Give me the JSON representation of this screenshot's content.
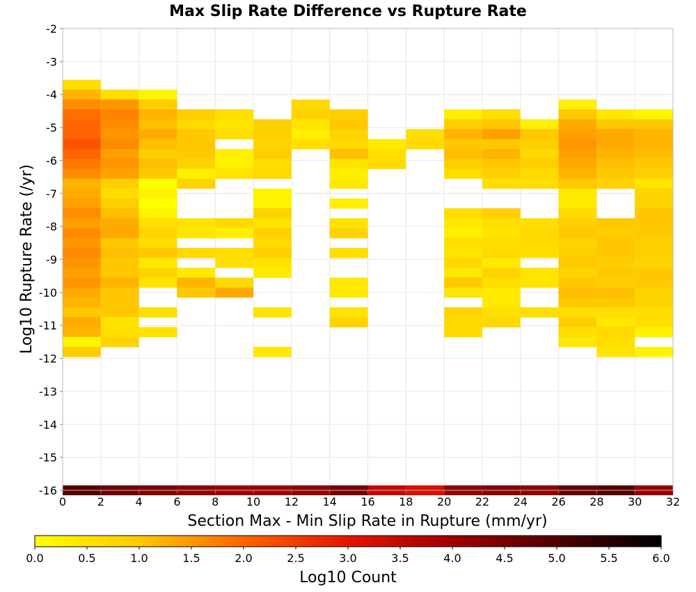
{
  "chart_data": {
    "type": "heatmap",
    "title": "Max Slip Rate Difference vs Rupture Rate",
    "xlabel": "Section Max - Min Slip Rate in Rupture (mm/yr)",
    "ylabel": "Log10 Rupture Rate (/yr)",
    "colorbar_label": "Log10 Count",
    "xlim": [
      0,
      32
    ],
    "ylim": [
      -16,
      -2
    ],
    "x_ticks": [
      "0",
      "2",
      "4",
      "6",
      "8",
      "10",
      "12",
      "14",
      "16",
      "18",
      "20",
      "22",
      "24",
      "26",
      "28",
      "30",
      "32"
    ],
    "y_ticks": [
      "-2",
      "-3",
      "-4",
      "-5",
      "-6",
      "-7",
      "-8",
      "-9",
      "-10",
      "-11",
      "-12",
      "-13",
      "-14",
      "-15",
      "-16"
    ],
    "colorbar_ticks": [
      "0.0",
      "0.5",
      "1.0",
      "1.5",
      "2.0",
      "2.5",
      "3.0",
      "3.5",
      "4.0",
      "4.5",
      "5.0",
      "5.5",
      "6.0"
    ],
    "colorscale": {
      "range": [
        0,
        6
      ],
      "stops": [
        {
          "v": 0.0,
          "color": "#ffff00"
        },
        {
          "v": 1.0,
          "color": "#ffc800"
        },
        {
          "v": 2.0,
          "color": "#ff6400"
        },
        {
          "v": 3.0,
          "color": "#e61400"
        },
        {
          "v": 4.0,
          "color": "#a00000"
        },
        {
          "v": 5.0,
          "color": "#500000"
        },
        {
          "v": 6.0,
          "color": "#000000"
        }
      ]
    },
    "x_bin_width": 2,
    "y_bin_height": 0.3,
    "bottom_row": {
      "y": -16,
      "values": [
        4.9,
        4.6,
        4.4,
        4.2,
        4.0,
        4.0,
        4.2,
        4.5,
        3.5,
        3.2,
        4.2,
        4.3,
        4.2,
        4.7,
        4.9,
        4.1
      ]
    },
    "columns": [
      {
        "x": 0,
        "cells": [
          [
            -3.7,
            0.6
          ],
          [
            -4.0,
            1.2
          ],
          [
            -4.3,
            1.6
          ],
          [
            -4.6,
            1.9
          ],
          [
            -4.9,
            2.0
          ],
          [
            -5.2,
            2.0
          ],
          [
            -5.5,
            2.2
          ],
          [
            -5.8,
            2.0
          ],
          [
            -6.1,
            1.8
          ],
          [
            -6.4,
            1.6
          ],
          [
            -6.7,
            1.2
          ],
          [
            -7.0,
            1.3
          ],
          [
            -7.3,
            1.4
          ],
          [
            -7.6,
            1.6
          ],
          [
            -7.9,
            1.4
          ],
          [
            -8.2,
            1.6
          ],
          [
            -8.5,
            1.5
          ],
          [
            -8.8,
            1.6
          ],
          [
            -9.1,
            1.5
          ],
          [
            -9.4,
            1.4
          ],
          [
            -9.7,
            1.5
          ],
          [
            -10.0,
            1.3
          ],
          [
            -10.3,
            1.2
          ],
          [
            -10.6,
            1.0
          ],
          [
            -10.9,
            1.3
          ],
          [
            -11.2,
            1.2
          ],
          [
            -11.5,
            0.2
          ],
          [
            -11.8,
            0.9
          ]
        ]
      },
      {
        "x": 2,
        "cells": [
          [
            -4.0,
            0.6
          ],
          [
            -4.3,
            1.5
          ],
          [
            -4.6,
            1.7
          ],
          [
            -4.9,
            1.6
          ],
          [
            -5.2,
            1.5
          ],
          [
            -5.5,
            1.6
          ],
          [
            -5.8,
            1.4
          ],
          [
            -6.1,
            1.5
          ],
          [
            -6.4,
            1.4
          ],
          [
            -6.7,
            0.9
          ],
          [
            -7.0,
            0.6
          ],
          [
            -7.3,
            0.9
          ],
          [
            -7.6,
            1.1
          ],
          [
            -7.9,
            1.3
          ],
          [
            -8.2,
            1.3
          ],
          [
            -8.5,
            1.0
          ],
          [
            -8.8,
            1.1
          ],
          [
            -9.1,
            1.0
          ],
          [
            -9.4,
            1.0
          ],
          [
            -9.7,
            1.2
          ],
          [
            -10.0,
            1.0
          ],
          [
            -10.3,
            1.0
          ],
          [
            -10.6,
            1.0
          ],
          [
            -10.9,
            0.5
          ],
          [
            -11.2,
            0.6
          ],
          [
            -11.5,
            0.8
          ]
        ]
      },
      {
        "x": 4,
        "cells": [
          [
            -4.0,
            0.2
          ],
          [
            -4.3,
            0.9
          ],
          [
            -4.6,
            1.2
          ],
          [
            -4.9,
            1.1
          ],
          [
            -5.2,
            1.3
          ],
          [
            -5.5,
            1.1
          ],
          [
            -5.8,
            0.9
          ],
          [
            -6.1,
            1.1
          ],
          [
            -6.4,
            1.0
          ],
          [
            -6.7,
            0.0
          ],
          [
            -7.0,
            0.2
          ],
          [
            -7.3,
            0.0
          ],
          [
            -7.6,
            0.2
          ],
          [
            -7.9,
            0.6
          ],
          [
            -8.2,
            0.8
          ],
          [
            -8.5,
            0.6
          ],
          [
            -8.8,
            1.0
          ],
          [
            -9.1,
            0.4
          ],
          [
            -9.4,
            0.8
          ],
          [
            -9.7,
            0.5
          ],
          [
            -10.6,
            0.6
          ],
          [
            -11.2,
            0.5
          ]
        ]
      },
      {
        "x": 6,
        "cells": [
          [
            -4.6,
            0.9
          ],
          [
            -4.9,
            0.7
          ],
          [
            -5.2,
            1.0
          ],
          [
            -5.5,
            1.0
          ],
          [
            -5.8,
            1.0
          ],
          [
            -6.1,
            0.8
          ],
          [
            -6.4,
            0.3
          ],
          [
            -6.7,
            0.8
          ],
          [
            -7.9,
            0.5
          ],
          [
            -8.2,
            0.5
          ],
          [
            -8.8,
            0.7
          ],
          [
            -9.4,
            0.4
          ],
          [
            -9.7,
            1.2
          ],
          [
            -10.0,
            1.0
          ]
        ]
      },
      {
        "x": 8,
        "cells": [
          [
            -4.6,
            0.6
          ],
          [
            -4.9,
            0.5
          ],
          [
            -5.2,
            0.6
          ],
          [
            -5.8,
            0.3
          ],
          [
            -6.1,
            0.3
          ],
          [
            -6.4,
            0.5
          ],
          [
            -7.9,
            0.7
          ],
          [
            -8.2,
            0.3
          ],
          [
            -8.8,
            0.6
          ],
          [
            -9.1,
            0.6
          ],
          [
            -9.7,
            0.7
          ],
          [
            -10.0,
            1.3
          ]
        ]
      },
      {
        "x": 10,
        "cells": [
          [
            -4.9,
            0.9
          ],
          [
            -5.2,
            0.9
          ],
          [
            -5.5,
            0.8
          ],
          [
            -5.8,
            0.9
          ],
          [
            -6.1,
            0.6
          ],
          [
            -6.4,
            0.7
          ],
          [
            -7.0,
            0.2
          ],
          [
            -7.3,
            0.2
          ],
          [
            -7.6,
            0.8
          ],
          [
            -7.9,
            0.5
          ],
          [
            -8.2,
            0.8
          ],
          [
            -8.5,
            0.7
          ],
          [
            -8.8,
            0.9
          ],
          [
            -9.1,
            0.5
          ],
          [
            -9.4,
            0.4
          ],
          [
            -10.6,
            0.5
          ],
          [
            -11.8,
            0.4
          ]
        ]
      },
      {
        "x": 12,
        "cells": [
          [
            -4.3,
            0.7
          ],
          [
            -4.6,
            0.8
          ],
          [
            -4.9,
            0.5
          ],
          [
            -5.2,
            0.3
          ],
          [
            -5.5,
            0.6
          ]
        ]
      },
      {
        "x": 14,
        "cells": [
          [
            -4.6,
            0.9
          ],
          [
            -4.9,
            1.0
          ],
          [
            -5.2,
            0.8
          ],
          [
            -5.5,
            0.7
          ],
          [
            -5.8,
            1.1
          ],
          [
            -6.1,
            0.5
          ],
          [
            -6.4,
            0.3
          ],
          [
            -6.7,
            0.4
          ],
          [
            -7.3,
            0.3
          ],
          [
            -7.9,
            0.5
          ],
          [
            -8.2,
            0.8
          ],
          [
            -8.8,
            0.6
          ],
          [
            -9.7,
            0.4
          ],
          [
            -10.0,
            0.4
          ],
          [
            -10.6,
            0.5
          ],
          [
            -10.9,
            0.8
          ]
        ]
      },
      {
        "x": 16,
        "cells": [
          [
            -5.5,
            0.4
          ],
          [
            -5.8,
            0.6
          ],
          [
            -6.1,
            0.7
          ]
        ]
      },
      {
        "x": 18,
        "cells": [
          [
            -5.2,
            0.6
          ],
          [
            -5.5,
            0.7
          ]
        ]
      },
      {
        "x": 20,
        "cells": [
          [
            -4.6,
            0.3
          ],
          [
            -4.9,
            0.9
          ],
          [
            -5.2,
            1.2
          ],
          [
            -5.5,
            1.0
          ],
          [
            -5.8,
            1.1
          ],
          [
            -6.1,
            0.9
          ],
          [
            -6.4,
            0.6
          ],
          [
            -7.6,
            0.6
          ],
          [
            -7.9,
            0.4
          ],
          [
            -8.2,
            0.3
          ],
          [
            -8.5,
            0.6
          ],
          [
            -8.8,
            0.5
          ],
          [
            -9.1,
            0.7
          ],
          [
            -9.4,
            0.4
          ],
          [
            -9.7,
            1.0
          ],
          [
            -10.0,
            0.5
          ],
          [
            -10.6,
            0.8
          ],
          [
            -10.9,
            0.7
          ],
          [
            -11.2,
            0.7
          ]
        ]
      },
      {
        "x": 22,
        "cells": [
          [
            -4.6,
            0.6
          ],
          [
            -4.9,
            1.0
          ],
          [
            -5.2,
            1.4
          ],
          [
            -5.5,
            1.0
          ],
          [
            -5.8,
            1.2
          ],
          [
            -6.1,
            1.0
          ],
          [
            -6.4,
            0.9
          ],
          [
            -6.7,
            0.6
          ],
          [
            -7.6,
            0.9
          ],
          [
            -7.9,
            0.6
          ],
          [
            -8.2,
            0.5
          ],
          [
            -8.5,
            0.6
          ],
          [
            -8.8,
            0.7
          ],
          [
            -9.1,
            0.4
          ],
          [
            -9.4,
            0.8
          ],
          [
            -9.7,
            0.6
          ],
          [
            -10.0,
            0.4
          ],
          [
            -10.3,
            0.4
          ],
          [
            -10.6,
            0.6
          ],
          [
            -10.9,
            0.7
          ]
        ]
      },
      {
        "x": 24,
        "cells": [
          [
            -4.9,
            0.3
          ],
          [
            -5.2,
            1.0
          ],
          [
            -5.5,
            0.9
          ],
          [
            -5.8,
            0.7
          ],
          [
            -6.1,
            0.9
          ],
          [
            -6.4,
            0.7
          ],
          [
            -6.7,
            0.6
          ],
          [
            -7.9,
            0.6
          ],
          [
            -8.2,
            0.7
          ],
          [
            -8.5,
            0.7
          ],
          [
            -8.8,
            0.6
          ],
          [
            -9.4,
            0.5
          ],
          [
            -9.7,
            0.5
          ],
          [
            -10.6,
            0.6
          ]
        ]
      },
      {
        "x": 26,
        "cells": [
          [
            -4.3,
            0.3
          ],
          [
            -4.6,
            1.0
          ],
          [
            -4.9,
            1.3
          ],
          [
            -5.2,
            1.4
          ],
          [
            -5.5,
            1.5
          ],
          [
            -5.8,
            1.4
          ],
          [
            -6.1,
            1.3
          ],
          [
            -6.4,
            1.2
          ],
          [
            -6.7,
            1.0
          ],
          [
            -7.0,
            0.4
          ],
          [
            -7.3,
            0.4
          ],
          [
            -7.6,
            0.7
          ],
          [
            -7.9,
            0.9
          ],
          [
            -8.2,
            1.0
          ],
          [
            -8.5,
            0.8
          ],
          [
            -8.8,
            0.9
          ],
          [
            -9.1,
            1.0
          ],
          [
            -9.4,
            0.8
          ],
          [
            -9.7,
            1.0
          ],
          [
            -10.0,
            1.1
          ],
          [
            -10.3,
            1.0
          ],
          [
            -10.6,
            0.6
          ],
          [
            -10.9,
            0.9
          ],
          [
            -11.2,
            0.6
          ],
          [
            -11.5,
            0.4
          ]
        ]
      },
      {
        "x": 28,
        "cells": [
          [
            -4.6,
            0.4
          ],
          [
            -4.9,
            1.0
          ],
          [
            -5.2,
            1.3
          ],
          [
            -5.5,
            1.3
          ],
          [
            -5.8,
            1.2
          ],
          [
            -6.1,
            1.1
          ],
          [
            -6.4,
            1.0
          ],
          [
            -6.7,
            0.8
          ],
          [
            -7.9,
            1.0
          ],
          [
            -8.2,
            0.9
          ],
          [
            -8.5,
            1.0
          ],
          [
            -8.8,
            1.0
          ],
          [
            -9.1,
            0.9
          ],
          [
            -9.4,
            1.0
          ],
          [
            -9.7,
            0.9
          ],
          [
            -10.0,
            1.1
          ],
          [
            -10.3,
            1.0
          ],
          [
            -10.6,
            0.6
          ],
          [
            -10.9,
            0.4
          ],
          [
            -11.2,
            0.7
          ],
          [
            -11.5,
            0.6
          ],
          [
            -11.8,
            0.5
          ]
        ]
      },
      {
        "x": 30,
        "cells": [
          [
            -4.6,
            0.2
          ],
          [
            -4.9,
            1.0
          ],
          [
            -5.2,
            1.2
          ],
          [
            -5.5,
            1.2
          ],
          [
            -5.8,
            1.1
          ],
          [
            -6.1,
            1.0
          ],
          [
            -6.4,
            0.9
          ],
          [
            -6.7,
            0.5
          ],
          [
            -7.0,
            0.8
          ],
          [
            -7.3,
            0.8
          ],
          [
            -7.6,
            1.0
          ],
          [
            -7.9,
            1.0
          ],
          [
            -8.2,
            1.0
          ],
          [
            -8.5,
            0.9
          ],
          [
            -8.8,
            0.9
          ],
          [
            -9.1,
            0.8
          ],
          [
            -9.4,
            1.0
          ],
          [
            -9.7,
            1.0
          ],
          [
            -10.0,
            0.8
          ],
          [
            -10.3,
            0.8
          ],
          [
            -10.6,
            0.6
          ],
          [
            -10.9,
            0.6
          ],
          [
            -11.2,
            0.3
          ],
          [
            -11.8,
            0.2
          ]
        ]
      }
    ]
  }
}
